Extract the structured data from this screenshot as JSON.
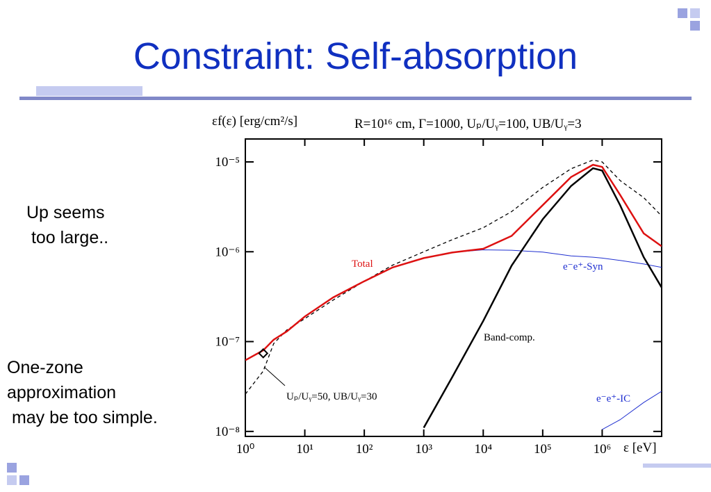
{
  "title": "Constraint: Self-absorption",
  "notes": [
    "Up seems\n too large..",
    "One-zone\napproximation\n may be too simple."
  ],
  "chart_data": {
    "type": "line",
    "y_label": "εf(ε) [erg/cm²/s]",
    "subtitle": "R=10¹⁶ cm, Γ=1000, Uₚ/Uᵧ=100, UB/Uᵧ=3",
    "x_label": "ε [eV]",
    "xlog": true,
    "ylog": true,
    "xlim": [
      1,
      10000000
    ],
    "ylim": [
      8.8e-09,
      1.8e-05
    ],
    "xticks": [
      {
        "value": 1,
        "label": "10⁰"
      },
      {
        "value": 10,
        "label": "10¹"
      },
      {
        "value": 100,
        "label": "10²"
      },
      {
        "value": 1000,
        "label": "10³"
      },
      {
        "value": 10000,
        "label": "10⁴"
      },
      {
        "value": 100000,
        "label": "10⁵"
      },
      {
        "value": 1000000,
        "label": "10⁶"
      }
    ],
    "yticks": [
      {
        "value": 1e-08,
        "label": "10⁻⁸"
      },
      {
        "value": 1e-07,
        "label": "10⁻⁷"
      },
      {
        "value": 1e-06,
        "label": "10⁻⁶"
      },
      {
        "value": 1e-05,
        "label": "10⁻⁵"
      }
    ],
    "x": [
      1,
      2,
      3,
      5,
      10,
      30,
      100,
      300,
      1000,
      3000,
      10000,
      30000,
      100000,
      300000,
      700000,
      1000000,
      2000000,
      5000000,
      10000000
    ],
    "series": [
      {
        "name": "Uₚ/Uᵧ=50, UB/Uᵧ=30",
        "color": "#000000",
        "line_style": "dashed",
        "values": [
          2.6e-08,
          4.7e-08,
          9.5e-08,
          1.35e-07,
          1.8e-07,
          2.9e-07,
          4.7e-07,
          7.1e-07,
          1e-06,
          1.36e-06,
          1.85e-06,
          2.8e-06,
          5.2e-06,
          8.4e-06,
          1.05e-05,
          1e-05,
          6.2e-06,
          4e-06,
          2.5e-06
        ]
      },
      {
        "name": "e⁻e⁺-Syn",
        "color": "#1f2fd0",
        "line_style": "thin",
        "values": [
          null,
          null,
          null,
          null,
          null,
          null,
          null,
          null,
          8.5e-07,
          9.8e-07,
          1.05e-06,
          1.04e-06,
          9.9e-07,
          9e-07,
          8.7e-07,
          8.5e-07,
          8e-07,
          7.3e-07,
          6.7e-07
        ]
      },
      {
        "name": "e⁻e⁺-IC",
        "color": "#1f2fd0",
        "line_style": "thin",
        "values": [
          null,
          null,
          null,
          null,
          null,
          null,
          null,
          null,
          null,
          null,
          null,
          null,
          null,
          null,
          null,
          1.05e-08,
          1.35e-08,
          2.1e-08,
          2.8e-08
        ]
      },
      {
        "name": "Band-comp.",
        "color": "#000000",
        "line_style": "solid",
        "values": [
          null,
          null,
          null,
          null,
          null,
          null,
          null,
          null,
          1.1e-08,
          4e-08,
          1.7e-07,
          7e-07,
          2.3e-06,
          5.4e-06,
          8.5e-06,
          8e-06,
          3.3e-06,
          8.7e-07,
          4e-07
        ]
      },
      {
        "name": "Total",
        "color": "#dd1111",
        "line_style": "solid",
        "values": [
          6.2e-08,
          8e-08,
          1.05e-07,
          1.3e-07,
          1.9e-07,
          3.1e-07,
          4.7e-07,
          6.7e-07,
          8.5e-07,
          9.8e-07,
          1.08e-06,
          1.5e-06,
          3.3e-06,
          6.8e-06,
          9.3e-06,
          8.8e-06,
          4.3e-06,
          1.6e-06,
          1.15e-06
        ]
      }
    ],
    "marker": {
      "x": 2,
      "y": 7.4e-08
    }
  }
}
